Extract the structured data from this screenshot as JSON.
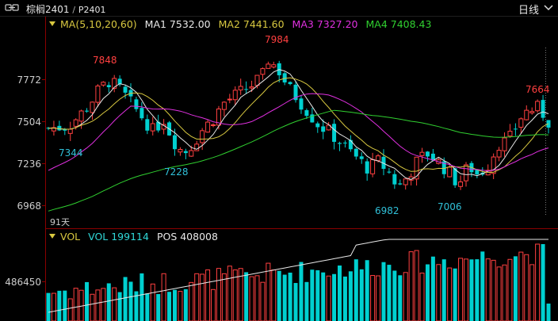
{
  "topbar": {
    "symbol": "棕榈2401",
    "separator": "/",
    "code": "P2401",
    "period": "日线",
    "icons": {
      "link": "link-icon",
      "dropdown": "chevron-down-icon"
    }
  },
  "price_legend": {
    "label": "MA(5,10,20,60)",
    "ma1": "MA1 7532.00",
    "ma2": "MA2 7441.60",
    "ma3": "MA3 7327.20",
    "ma4": "MA4 7408.43"
  },
  "vol_legend": {
    "label": "VOL",
    "vol": "VOL 199114",
    "pos": "POS 408008"
  },
  "price_axis": [
    "7772",
    "7504",
    "7236",
    "6968"
  ],
  "vol_axis": [
    "486450"
  ],
  "span_label": "91天",
  "annotations": {
    "high_left": "7848",
    "high_mid": "7984",
    "high_right": "7664",
    "low_1": "7344",
    "low_2": "7228",
    "low_3": "6982",
    "low_4": "7006"
  },
  "colors": {
    "up": "#ff4040",
    "down": "#00d0d0",
    "ma1": "#e8e8e8",
    "ma2": "#d8c840",
    "ma3": "#e030e0",
    "ma4": "#30d030",
    "axis": "#8a0000",
    "high_label": "#ff4040",
    "low_label": "#30c0d8"
  },
  "chart_data": [
    {
      "type": "candlestick",
      "y_ticks": [
        6968,
        7236,
        7504,
        7772
      ],
      "ylim": [
        6918,
        8056
      ],
      "candles_visible": 91,
      "marked_highs": [
        7848,
        7984,
        7664
      ],
      "marked_lows": [
        7344,
        7228,
        6982,
        7006
      ],
      "moving_averages": [
        {
          "name": "MA1",
          "period": 5,
          "last": 7532.0
        },
        {
          "name": "MA2",
          "period": 10,
          "last": 7441.6
        },
        {
          "name": "MA3",
          "period": 20,
          "last": 7327.2
        },
        {
          "name": "MA4",
          "period": 60,
          "last": 7408.43
        }
      ]
    },
    {
      "type": "bar",
      "y_ticks": [
        486450
      ],
      "last_volume": 199114,
      "last_position": 408008
    }
  ]
}
